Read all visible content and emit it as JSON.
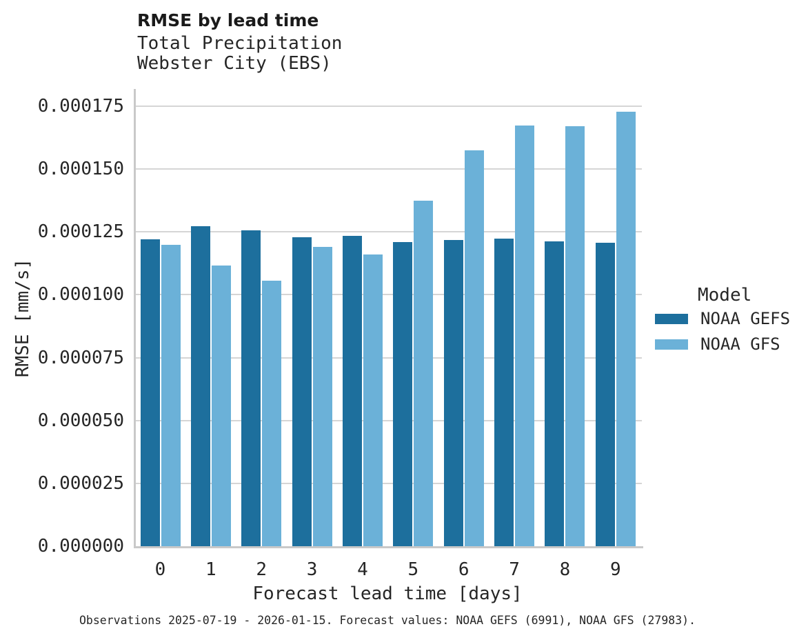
{
  "header": {
    "title": "RMSE by lead time",
    "subtitle_lines": [
      "Total Precipitation",
      "Webster City (EBS)"
    ]
  },
  "chart_data": {
    "type": "bar",
    "title": "RMSE by lead time",
    "subtitle": "Total Precipitation / Webster City (EBS)",
    "categories": [
      "0",
      "1",
      "2",
      "3",
      "4",
      "5",
      "6",
      "7",
      "8",
      "9"
    ],
    "series": [
      {
        "name": "NOAA GEFS",
        "color": "#1d6f9d",
        "values": [
          0.0001221,
          0.0001272,
          0.0001256,
          0.0001229,
          0.0001235,
          0.000121,
          0.0001217,
          0.0001223,
          0.0001213,
          0.0001206
        ]
      },
      {
        "name": "NOAA GFS",
        "color": "#6bb1d8",
        "values": [
          0.0001199,
          0.0001117,
          0.0001056,
          0.000119,
          0.000116,
          0.0001373,
          0.0001574,
          0.0001674,
          0.0001671,
          0.0001729
        ]
      }
    ],
    "xlabel": "Forecast lead time [days]",
    "ylabel": "RMSE [mm/s]",
    "ylim": [
      0,
      0.000182
    ],
    "yticks": [
      0,
      2.5e-05,
      5e-05,
      7.5e-05,
      0.0001,
      0.000125,
      0.00015,
      0.000175
    ],
    "ytick_labels": [
      "0.000000",
      "0.000025",
      "0.000050",
      "0.000075",
      "0.000100",
      "0.000125",
      "0.000150",
      "0.000175"
    ],
    "grid": "horizontal-behind-bars",
    "legend_title": "Model",
    "legend_position": "center-right"
  },
  "caption": {
    "text": "Observations 2025-07-19 - 2026-01-15. Forecast values: NOAA GEFS (6991), NOAA GFS (27983)."
  }
}
